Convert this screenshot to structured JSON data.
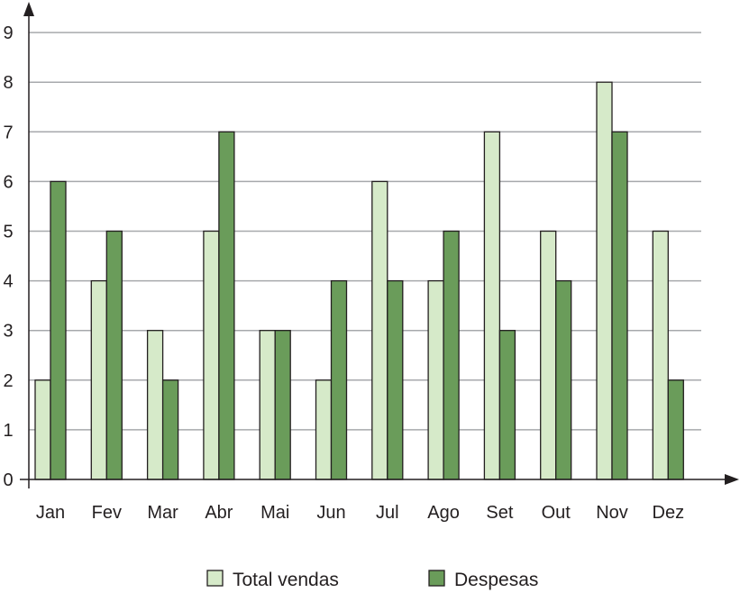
{
  "chart_data": {
    "type": "bar",
    "categories": [
      "Jan",
      "Fev",
      "Mar",
      "Abr",
      "Mai",
      "Jun",
      "Jul",
      "Ago",
      "Set",
      "Out",
      "Nov",
      "Dez"
    ],
    "series": [
      {
        "name": "Total vendas",
        "color": "#d6eac9",
        "values": [
          2,
          4,
          3,
          5,
          3,
          2,
          6,
          4,
          7,
          5,
          8,
          5
        ]
      },
      {
        "name": "Despesas",
        "color": "#6a9c5a",
        "values": [
          6,
          5,
          2,
          7,
          3,
          4,
          4,
          5,
          3,
          4,
          7,
          2
        ]
      }
    ],
    "y_ticks": [
      "0",
      "1",
      "2",
      "3",
      "4",
      "5",
      "6",
      "7",
      "8",
      "9"
    ],
    "ylim": [
      0,
      9
    ],
    "grid": true,
    "legend_position": "bottom",
    "title": "",
    "xlabel": "",
    "ylabel": ""
  }
}
